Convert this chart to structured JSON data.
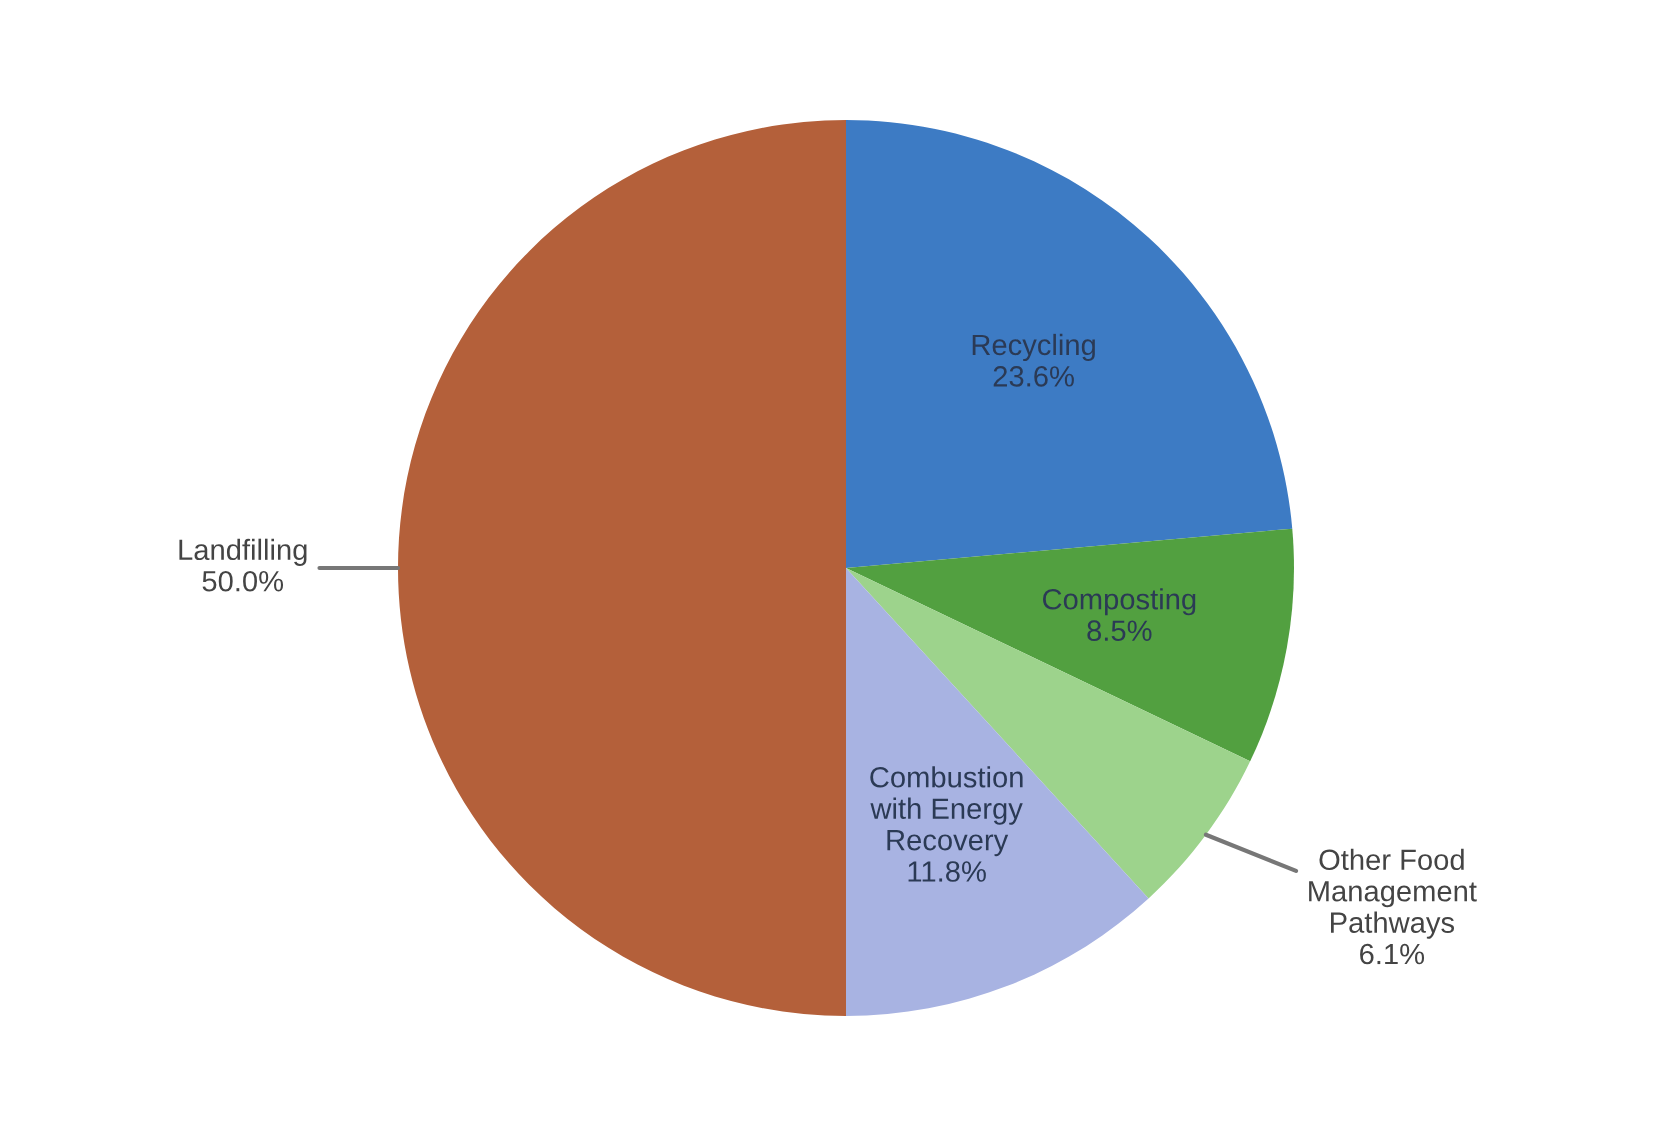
{
  "chart_data": {
    "type": "pie",
    "categories": [
      "Recycling",
      "Composting",
      "Other Food\nManagement\nPathways",
      "Combustion\nwith Energy\nRecovery",
      "Landfilling"
    ],
    "values": [
      23.6,
      8.5,
      6.1,
      11.8,
      50.0
    ],
    "colors": [
      "#3d7bc4",
      "#52a040",
      "#9dd38c",
      "#a8b3e2",
      "#b4603a"
    ],
    "value_labels": [
      "23.6%",
      "8.5%",
      "6.1%",
      "11.8%",
      "50.0%"
    ]
  }
}
